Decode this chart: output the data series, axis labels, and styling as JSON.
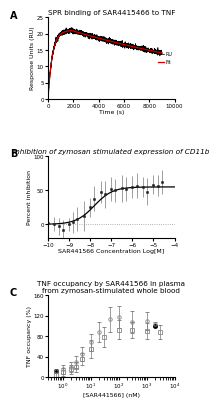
{
  "panel_A": {
    "title": "SPR binding of SAR4415466 to TNF",
    "xlabel": "Time (s)",
    "ylabel": "Response Units (RU)",
    "ylim": [
      0,
      25
    ],
    "xlim": [
      0,
      10000
    ],
    "xticks": [
      0,
      2000,
      4000,
      6000,
      8000,
      10000
    ],
    "yticks": [
      0,
      5,
      10,
      15,
      20,
      25
    ],
    "legend_ru": "RU",
    "legend_fit": "Fit",
    "color_ru": "#000000",
    "color_fit": "#cc0000"
  },
  "panel_B": {
    "title": "Inhibition of zymosan stimulated expression of CD11b",
    "xlabel": "SAR441566 Concentration Log[M]",
    "ylabel": "Percent inhibition",
    "ylim": [
      -20,
      100
    ],
    "xlim": [
      -10,
      -4
    ],
    "xticks": [
      -10,
      -9,
      -8,
      -7,
      -6,
      -5,
      -4
    ],
    "yticks": [
      0,
      50,
      100
    ],
    "scatter_color": "#222222",
    "line_color": "#000000",
    "dot_line_color": "#999999"
  },
  "panel_C": {
    "title": "TNF occupancy by SAR441566 in plasma\nfrom zymosan-stimulated whole blood",
    "xlabel": "[SAR441566] (nM)",
    "ylabel": "TNF occupancy (%)",
    "ylim": [
      0,
      160
    ],
    "xlim_log": [
      0.3,
      10000
    ],
    "yticks": [
      0,
      40,
      80,
      120,
      160
    ],
    "circle_color": "#888888",
    "square_color": "#888888",
    "solid_dot_color": "#000000"
  },
  "background_color": "#ffffff",
  "title_fontsize": 5.2,
  "label_fontsize": 4.5,
  "tick_fontsize": 4.0
}
